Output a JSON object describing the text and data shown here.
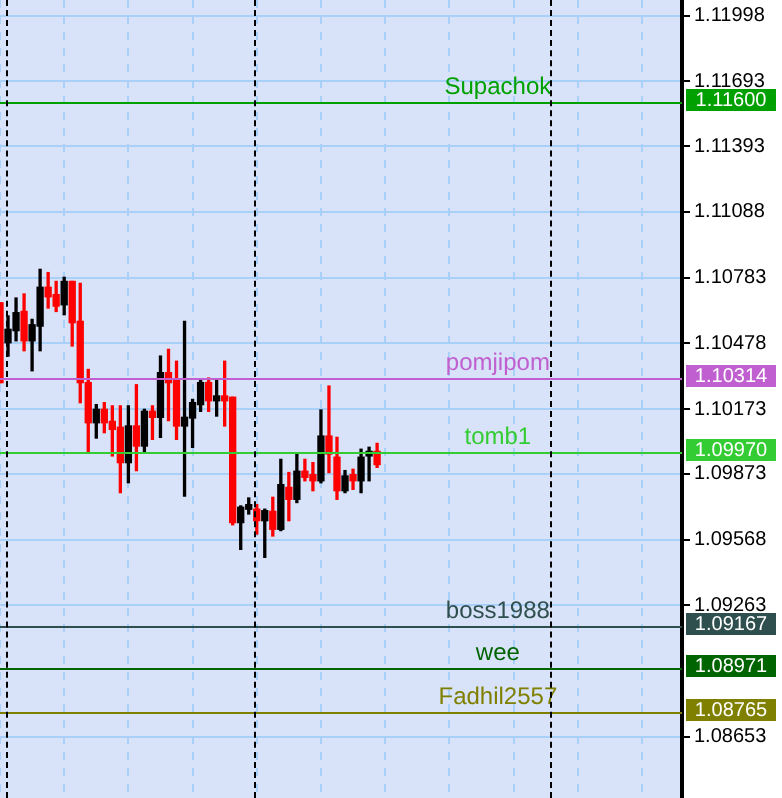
{
  "chart_data": {
    "type": "candlestick",
    "categories": [
      null,
      null,
      null,
      null,
      null,
      null,
      null,
      null,
      null,
      null,
      null,
      null,
      null,
      null,
      null,
      null,
      null,
      null,
      null,
      null,
      null,
      null,
      null,
      null,
      null,
      null,
      null,
      null,
      null,
      null,
      null,
      null,
      null,
      null,
      null,
      null,
      null,
      null,
      null,
      null,
      null,
      null,
      null,
      null,
      null,
      null,
      null,
      null,
      null,
      null,
      null,
      null,
      null,
      null,
      null,
      null,
      null,
      null,
      null,
      null,
      null,
      null,
      null,
      null,
      null,
      null,
      null,
      null,
      null,
      null,
      null,
      null,
      null,
      null,
      null,
      null,
      null,
      null,
      null,
      null,
      null,
      null,
      null,
      null,
      null,
      null
    ],
    "ohlc": [
      [
        1.10666,
        1.10666,
        1.10296,
        1.10296
      ],
      [
        1.10481,
        1.10605,
        1.10419,
        1.10543
      ],
      [
        1.10537,
        1.10688,
        1.1049,
        1.1062
      ],
      [
        1.10626,
        1.10707,
        1.10444,
        1.1049
      ],
      [
        1.1049,
        1.10589,
        1.10351,
        1.10564
      ],
      [
        1.10558,
        1.10821,
        1.10444,
        1.10738
      ],
      [
        1.10738,
        1.10806,
        1.10642,
        1.10694
      ],
      [
        1.10704,
        1.10765,
        1.10626,
        1.10651
      ],
      [
        1.10657,
        1.10784,
        1.10611,
        1.10765
      ],
      [
        1.10765,
        1.10765,
        1.10466,
        1.10574
      ],
      [
        1.1058,
        1.10756,
        1.10203,
        1.10296
      ],
      [
        1.10296,
        1.10357,
        1.09971,
        1.1011
      ],
      [
        1.1011,
        1.10194,
        1.10039,
        1.10172
      ],
      [
        1.10172,
        1.10203,
        1.10064,
        1.1011
      ],
      [
        1.10116,
        1.10188,
        1.09956,
        1.10079
      ],
      [
        1.10089,
        1.10188,
        1.09786,
        1.09925
      ],
      [
        1.09925,
        1.10188,
        1.09832,
        1.10095
      ],
      [
        1.10095,
        1.10286,
        1.09888,
        1.10002
      ],
      [
        1.10002,
        1.10172,
        1.09971,
        1.10163
      ],
      [
        1.10163,
        1.10188,
        1.10033,
        1.10135
      ],
      [
        1.10135,
        1.10419,
        1.10042,
        1.10342
      ],
      [
        1.10342,
        1.1045,
        1.1012,
        1.10296
      ],
      [
        1.10311,
        1.10395,
        1.10033,
        1.10095
      ],
      [
        1.10095,
        1.1058,
        1.0977,
        1.10135
      ],
      [
        1.10132,
        1.10218,
        1.09996,
        1.10203
      ],
      [
        1.10194,
        1.10311,
        1.10163,
        1.10296
      ],
      [
        1.10296,
        1.10317,
        1.10163,
        1.10212
      ],
      [
        1.10212,
        1.10311,
        1.10141,
        1.10234
      ],
      [
        1.10234,
        1.10395,
        1.10095,
        1.10212
      ],
      [
        1.10228,
        1.10228,
        1.09637,
        1.09647
      ],
      [
        1.09647,
        1.09724,
        1.09523,
        1.09718
      ],
      [
        1.09709,
        1.09761,
        1.09687,
        1.0973
      ],
      [
        1.09709,
        1.0973,
        1.09594,
        1.09656
      ],
      [
        1.09656,
        1.09709,
        1.09486,
        1.09702
      ],
      [
        1.09699,
        1.09764,
        1.09585,
        1.09616
      ],
      [
        1.09616,
        1.0994,
        1.0961,
        1.09823
      ],
      [
        1.0981,
        1.09879,
        1.09656,
        1.09755
      ],
      [
        1.09755,
        1.09965,
        1.0974,
        1.09885
      ],
      [
        1.09885,
        1.0994,
        1.09841,
        1.09857
      ],
      [
        1.09869,
        1.09925,
        1.09795,
        1.09841
      ],
      [
        1.09841,
        1.10169,
        1.09832,
        1.10048
      ],
      [
        1.10048,
        1.1028,
        1.09879,
        1.09965
      ],
      [
        1.0995,
        1.10042,
        1.09755,
        1.09795
      ],
      [
        1.09795,
        1.09888,
        1.09786,
        1.09863
      ],
      [
        1.09869,
        1.09894,
        1.09801,
        1.09841
      ],
      [
        1.09841,
        1.09987,
        1.09786,
        1.0995
      ],
      [
        1.09956,
        1.09996,
        1.09841,
        1.09977
      ],
      [
        1.09977,
        1.10014,
        1.09903,
        1.09916
      ],
      null,
      null,
      null,
      null,
      null,
      null,
      null,
      null,
      null,
      null,
      null,
      null,
      null,
      null,
      null,
      null,
      null,
      null,
      null,
      null,
      null,
      null,
      null,
      null,
      null,
      null,
      null,
      null,
      null,
      null,
      null,
      null,
      null,
      null,
      null,
      null,
      null,
      null
    ],
    "ylim": [
      1.0837,
      1.1207
    ],
    "yticks": [
      1.11998,
      1.11693,
      1.11393,
      1.11088,
      1.10783,
      1.10478,
      1.10173,
      1.09873,
      1.09568,
      1.09263,
      1.08653
    ],
    "grid": true,
    "tick_labels": "y",
    "ref_lines": [
      {
        "axis": "y",
        "value": 1.116,
        "label": "Supachok",
        "color": "#00a000"
      },
      {
        "axis": "y",
        "value": 1.10314,
        "label": "pomjipom",
        "color": "#c060d0"
      },
      {
        "axis": "y",
        "value": 1.0997,
        "label": "tomb1",
        "color": "#33cc33"
      },
      {
        "axis": "y",
        "value": 1.09167,
        "label": "boss1988",
        "color": "#2f4f4f"
      },
      {
        "axis": "y",
        "value": 1.08971,
        "label": "wee",
        "color": "#006400"
      },
      {
        "axis": "y",
        "value": 1.08765,
        "label": "Fadhil2557",
        "color": "#808000"
      }
    ],
    "annotations": [
      "1.11600",
      "1.10314",
      "1.09970",
      "1.09167",
      "1.08971",
      "1.08765"
    ]
  }
}
